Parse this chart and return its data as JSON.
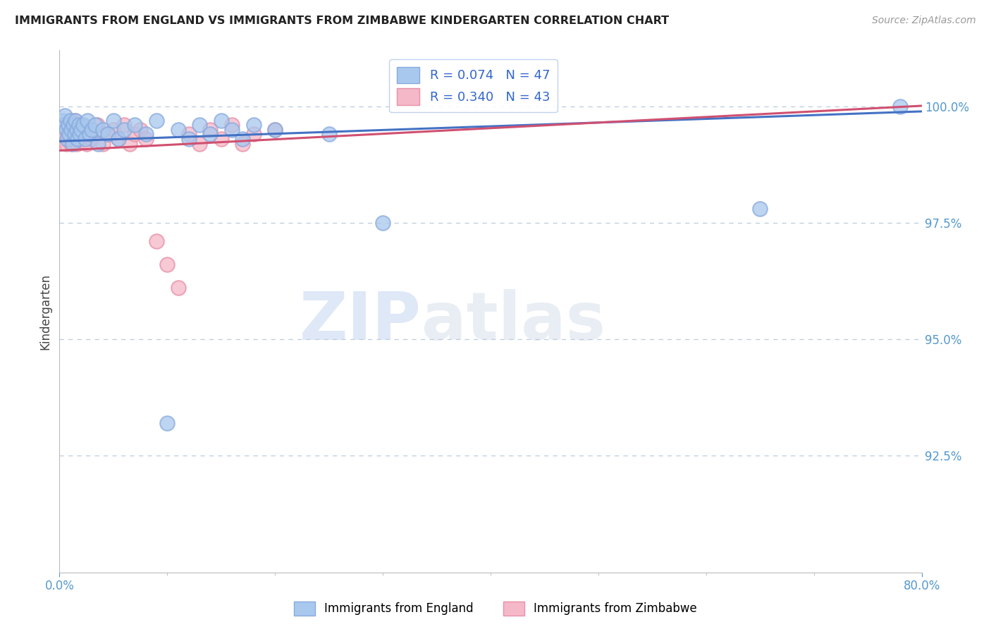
{
  "title": "IMMIGRANTS FROM ENGLAND VS IMMIGRANTS FROM ZIMBABWE KINDERGARTEN CORRELATION CHART",
  "source": "Source: ZipAtlas.com",
  "ylabel": "Kindergarten",
  "x_min": 0.0,
  "x_max": 80.0,
  "y_min": 90.0,
  "y_max": 101.2,
  "y_ticks": [
    92.5,
    95.0,
    97.5,
    100.0
  ],
  "legend_england": "Immigrants from England",
  "legend_zimbabwe": "Immigrants from Zimbabwe",
  "R_england": 0.074,
  "N_england": 47,
  "R_zimbabwe": 0.34,
  "N_zimbabwe": 43,
  "color_england": "#A8C8EE",
  "color_zimbabwe": "#F5B8C8",
  "color_england_edge": "#88AADD",
  "color_zimbabwe_edge": "#E890A8",
  "trendline_england_color": "#4472C4",
  "trendline_zimbabwe_color": "#D05070",
  "background": "#FFFFFF",
  "watermark_zip": "ZIP",
  "watermark_atlas": "atlas",
  "england_x": [
    0.3,
    0.4,
    0.5,
    0.6,
    0.7,
    0.8,
    0.9,
    1.0,
    1.1,
    1.2,
    1.3,
    1.4,
    1.5,
    1.6,
    1.7,
    1.8,
    1.9,
    2.0,
    2.2,
    2.4,
    2.6,
    2.8,
    3.0,
    3.3,
    3.6,
    4.0,
    4.5,
    5.0,
    5.5,
    6.0,
    7.0,
    8.0,
    9.0,
    10.0,
    11.0,
    12.0,
    13.0,
    14.0,
    15.0,
    16.0,
    17.0,
    18.0,
    20.0,
    25.0,
    30.0,
    65.0,
    78.0
  ],
  "england_y": [
    99.7,
    99.6,
    99.8,
    99.5,
    99.3,
    99.6,
    99.4,
    99.7,
    99.5,
    99.2,
    99.6,
    99.4,
    99.7,
    99.5,
    99.3,
    99.6,
    99.4,
    99.5,
    99.6,
    99.3,
    99.7,
    99.4,
    99.5,
    99.6,
    99.2,
    99.5,
    99.4,
    99.7,
    99.3,
    99.5,
    99.6,
    99.4,
    99.7,
    93.2,
    99.5,
    99.3,
    99.6,
    99.4,
    99.7,
    99.5,
    99.3,
    99.6,
    99.5,
    99.4,
    97.5,
    97.8,
    100.0
  ],
  "zimbabwe_x": [
    0.2,
    0.3,
    0.4,
    0.5,
    0.6,
    0.7,
    0.8,
    0.9,
    1.0,
    1.1,
    1.2,
    1.3,
    1.4,
    1.5,
    1.6,
    1.7,
    1.8,
    2.0,
    2.2,
    2.5,
    2.8,
    3.0,
    3.5,
    4.0,
    4.5,
    5.0,
    5.5,
    6.0,
    6.5,
    7.0,
    7.5,
    8.0,
    9.0,
    10.0,
    11.0,
    12.0,
    13.0,
    14.0,
    15.0,
    16.0,
    17.0,
    18.0,
    20.0
  ],
  "zimbabwe_y": [
    99.5,
    99.3,
    99.6,
    99.4,
    99.2,
    99.5,
    99.3,
    99.6,
    99.4,
    99.2,
    99.5,
    99.3,
    99.7,
    99.4,
    99.2,
    99.5,
    99.3,
    99.6,
    99.4,
    99.2,
    99.5,
    99.3,
    99.6,
    99.2,
    99.4,
    99.5,
    99.3,
    99.6,
    99.2,
    99.4,
    99.5,
    99.3,
    97.1,
    96.6,
    96.1,
    99.4,
    99.2,
    99.5,
    99.3,
    99.6,
    99.2,
    99.4,
    99.5
  ]
}
